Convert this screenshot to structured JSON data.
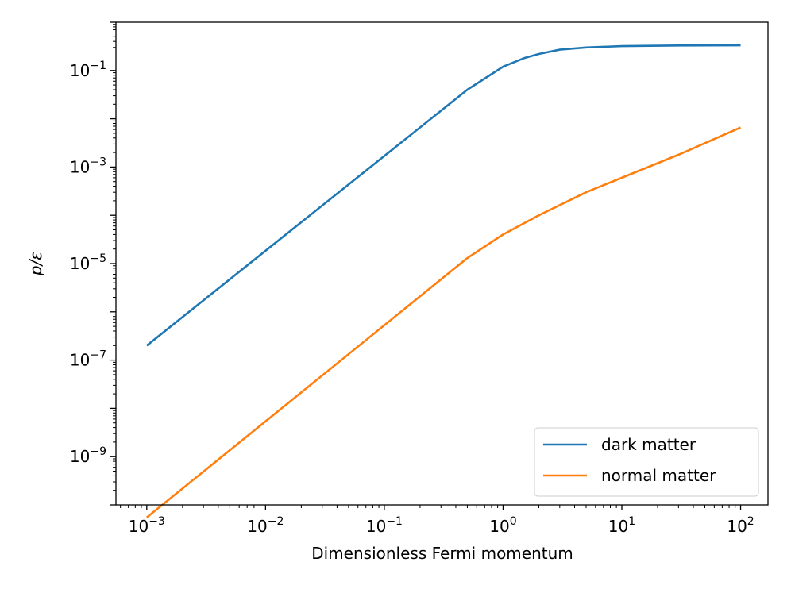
{
  "chart_data": {
    "type": "line",
    "title": "",
    "xlabel": "Dimensionless Fermi momentum",
    "ylabel": "p/ε",
    "xscale": "log",
    "yscale": "log",
    "xlim": [
      0.00055,
      170
    ],
    "ylim": [
      1e-10,
      1
    ],
    "grid": false,
    "legend_position": "lower-right",
    "x_ticks": [
      {
        "base": "10",
        "exp": "−3",
        "value": 0.001
      },
      {
        "base": "10",
        "exp": "−2",
        "value": 0.01
      },
      {
        "base": "10",
        "exp": "−1",
        "value": 0.1
      },
      {
        "base": "10",
        "exp": "0",
        "value": 1
      },
      {
        "base": "10",
        "exp": "1",
        "value": 10
      },
      {
        "base": "10",
        "exp": "2",
        "value": 100
      }
    ],
    "y_ticks": [
      {
        "base": "10",
        "exp": "−1",
        "value": 0.1
      },
      {
        "base": "10",
        "exp": "−3",
        "value": 0.001
      },
      {
        "base": "10",
        "exp": "−5",
        "value": 1e-05
      },
      {
        "base": "10",
        "exp": "−7",
        "value": 1e-07
      },
      {
        "base": "10",
        "exp": "−9",
        "value": 1e-09
      }
    ],
    "series": [
      {
        "name": "dark matter",
        "color": "#1f77b4",
        "x": [
          0.001,
          0.5,
          1,
          1.5,
          2,
          3,
          5,
          10,
          30,
          100
        ],
        "y": [
          2e-07,
          0.04,
          0.12,
          0.18,
          0.22,
          0.27,
          0.3,
          0.32,
          0.33,
          0.333
        ]
      },
      {
        "name": "normal matter",
        "color": "#ff7f0e",
        "x": [
          0.001,
          0.5,
          1,
          2,
          5,
          10,
          30,
          100
        ],
        "y": [
          5.5e-11,
          1.3e-05,
          4e-05,
          0.0001,
          0.0003,
          0.0006,
          0.0018,
          0.0066
        ]
      }
    ]
  }
}
